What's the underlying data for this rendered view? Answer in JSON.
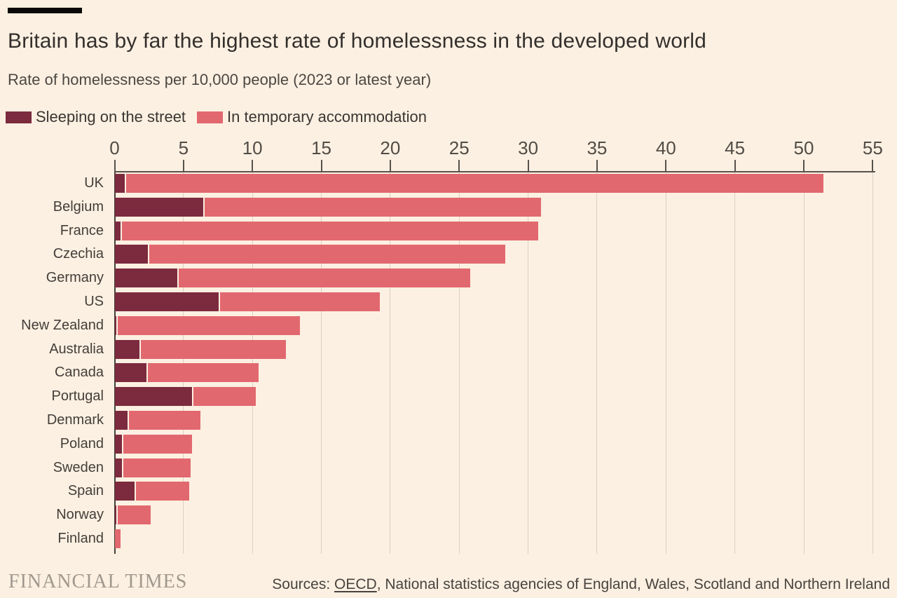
{
  "accent_bar_color": "#0a0908",
  "header": {
    "title": "Britain has by far the highest rate of homelessness in the developed world",
    "subtitle": "Rate of homelessness per 10,000 people (2023 or latest year)"
  },
  "legend": [
    {
      "label": "Sleeping on the street",
      "color": "#7c2a3e"
    },
    {
      "label": "In temporary accommodation",
      "color": "#e2686f"
    }
  ],
  "chart_data": {
    "type": "bar",
    "orientation": "horizontal",
    "stacked": true,
    "title": "Britain has by far the highest rate of homelessness in the developed world",
    "subtitle": "Rate of homelessness per 10,000 people (2023 or latest year)",
    "unit": "rate per 10,000 people",
    "categories": [
      "UK",
      "Belgium",
      "France",
      "Czechia",
      "Germany",
      "US",
      "New Zealand",
      "Australia",
      "Canada",
      "Portugal",
      "Denmark",
      "Poland",
      "Sweden",
      "Spain",
      "Norway",
      "Finland"
    ],
    "series": [
      {
        "name": "Sleeping on the street",
        "color": "#7c2a3e",
        "values": [
          0.7,
          6.4,
          0.4,
          2.4,
          4.5,
          7.5,
          0.1,
          1.8,
          2.3,
          5.6,
          0.9,
          0.5,
          0.5,
          1.4,
          0.1,
          0.0
        ]
      },
      {
        "name": "In temporary accommodation",
        "color": "#e2686f",
        "values": [
          50.7,
          24.5,
          30.3,
          25.9,
          21.3,
          11.7,
          13.3,
          10.6,
          8.1,
          4.6,
          5.3,
          5.1,
          5.0,
          4.0,
          2.5,
          0.4
        ]
      }
    ],
    "totals": [
      51.4,
      30.9,
      30.7,
      28.3,
      25.8,
      19.2,
      13.4,
      12.4,
      10.4,
      10.2,
      6.2,
      5.6,
      5.5,
      5.4,
      2.6,
      0.4
    ],
    "x_ticks": [
      0,
      5,
      10,
      15,
      20,
      25,
      30,
      35,
      40,
      45,
      50,
      55
    ],
    "xlim": [
      0,
      55
    ],
    "grid": "vertical-light",
    "legend_position": "top-left"
  },
  "footer": {
    "logo": "FINANCIAL TIMES",
    "sources_prefix": "Sources: ",
    "source_link": "OECD",
    "sources_rest": ", National statistics agencies of England, Wales, Scotland and Northern Ireland"
  }
}
